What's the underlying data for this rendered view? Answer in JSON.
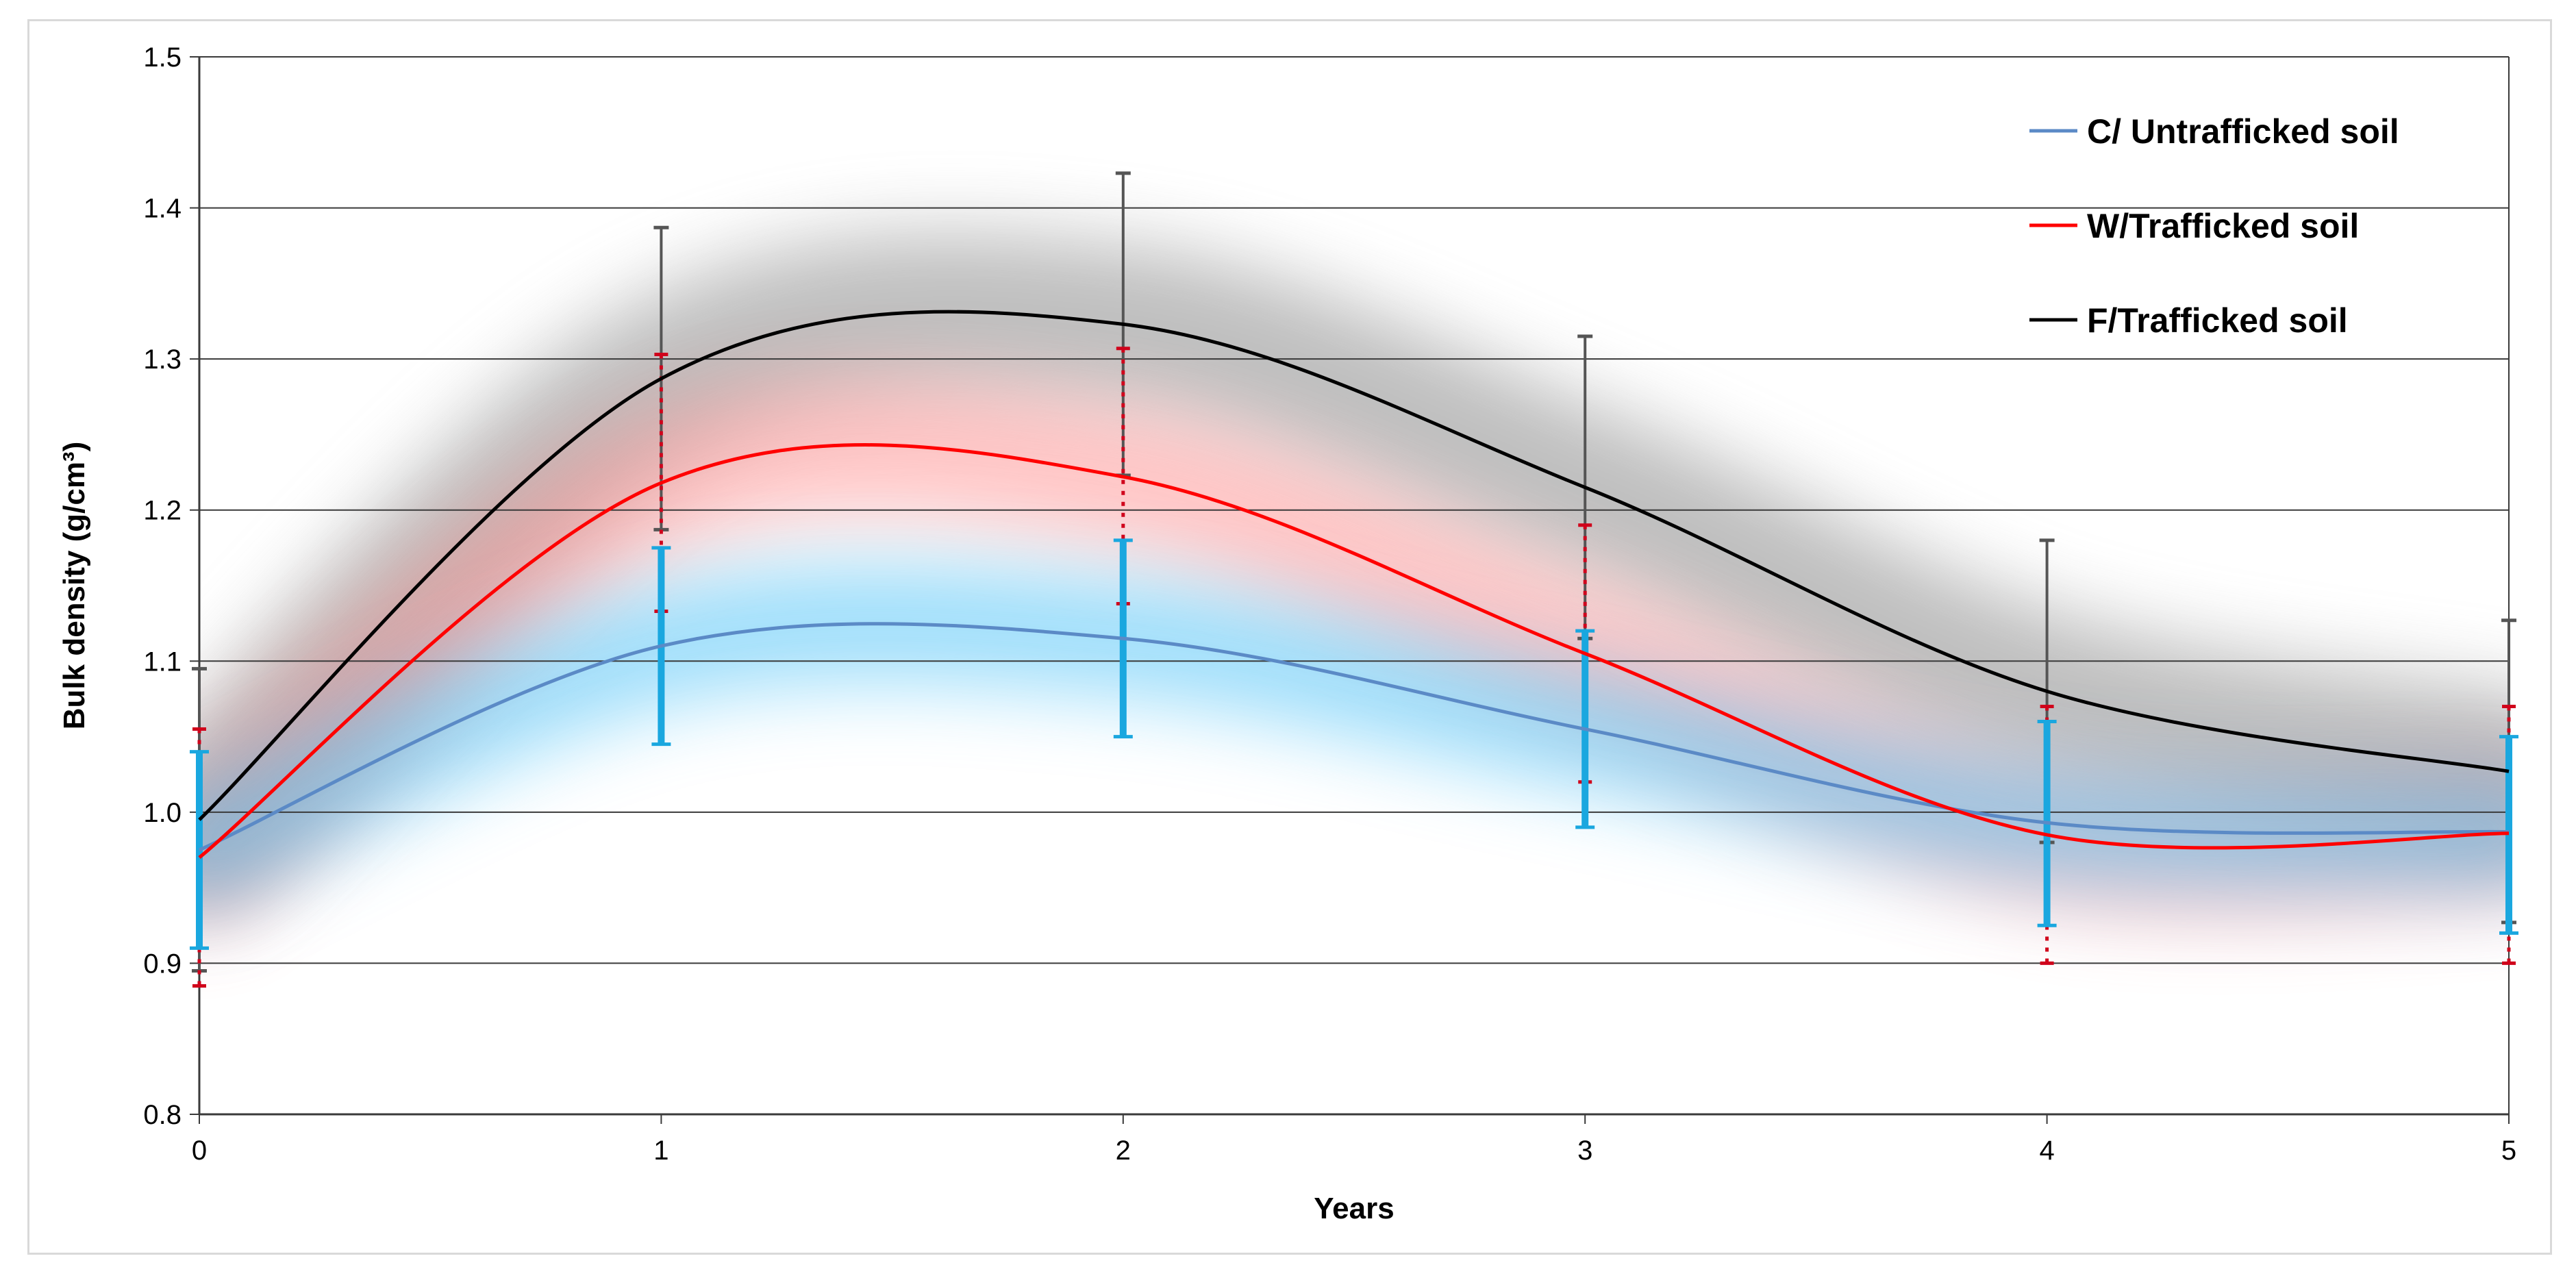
{
  "chart_data": {
    "type": "line",
    "title": "",
    "xlabel": "Years",
    "ylabel": "Bulk density (g/cm³)",
    "xlim": [
      0,
      5
    ],
    "ylim": [
      0.8,
      1.5
    ],
    "x_ticks": [
      "0",
      "1",
      "2",
      "3",
      "4",
      "5"
    ],
    "y_ticks": [
      "0.8",
      "0.9",
      "1.0",
      "1.1",
      "1.2",
      "1.3",
      "1.4",
      "1.5"
    ],
    "grid": true,
    "smooth": true,
    "legend_position": "top-right",
    "x": [
      0,
      1,
      2,
      3,
      4,
      5
    ],
    "series": [
      {
        "name": "C/ Untrafficked soil",
        "color": "#5b8ac6",
        "bar_color": "#1aa7df",
        "glow_color": "#4fc3f7",
        "values": [
          0.975,
          1.11,
          1.115,
          1.055,
          0.993,
          0.987
        ],
        "error_low": [
          0.91,
          1.045,
          1.05,
          0.99,
          0.925,
          0.92
        ],
        "error_high": [
          1.04,
          1.175,
          1.18,
          1.12,
          1.06,
          1.05
        ]
      },
      {
        "name": "W/Trafficked soil",
        "color": "#ff0000",
        "bar_color": "#d0021b",
        "glow_color": "#ff8080",
        "values": [
          0.97,
          1.218,
          1.222,
          1.105,
          0.985,
          0.986
        ],
        "error_low": [
          0.885,
          1.133,
          1.138,
          1.02,
          0.9,
          0.9
        ],
        "error_high": [
          1.055,
          1.303,
          1.307,
          1.19,
          1.07,
          1.07
        ]
      },
      {
        "name": "F/Trafficked soil",
        "color": "#000000",
        "bar_color": "#555555",
        "glow_color": "#8a8a8a",
        "values": [
          0.995,
          1.287,
          1.323,
          1.215,
          1.08,
          1.027
        ],
        "error_low": [
          0.895,
          1.187,
          1.223,
          1.115,
          0.98,
          0.927
        ],
        "error_high": [
          1.095,
          1.387,
          1.423,
          1.315,
          1.18,
          1.127
        ]
      }
    ]
  }
}
